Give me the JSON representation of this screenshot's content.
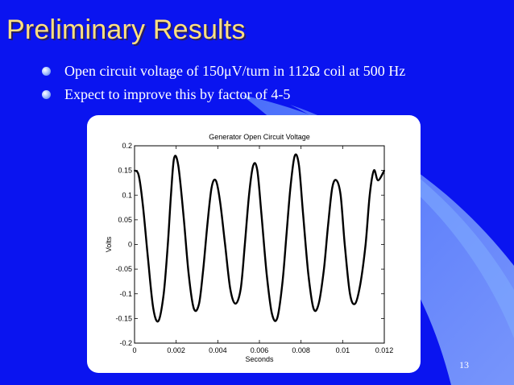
{
  "slide": {
    "title": "Preliminary Results",
    "bullets": [
      "Open circuit voltage of 150μV/turn in 112Ω coil at 500 Hz",
      "Expect to improve this by factor of 4-5"
    ],
    "page_number": "13",
    "colors": {
      "background": "#0a14f0",
      "title": "#ffe080",
      "text": "#ffffff",
      "trace": "#000000"
    }
  },
  "chart_data": {
    "type": "line",
    "title": "Generator Open Circuit Voltage",
    "xlabel": "Seconds",
    "ylabel": "Volts",
    "xlim": [
      0,
      0.012
    ],
    "ylim": [
      -0.2,
      0.2
    ],
    "xticks": [
      "0",
      "0.002",
      "0.004",
      "0.006",
      "0.008",
      "0.01",
      "0.012"
    ],
    "yticks": [
      "0.2",
      "0.15",
      "0.1",
      "0.05",
      "0",
      "-0.05",
      "-0.1",
      "-0.15",
      "-0.2"
    ],
    "grid": false,
    "series": [
      {
        "x": [
          0,
          0.0002,
          0.0004,
          0.00065,
          0.0009,
          0.00115,
          0.0014,
          0.0016,
          0.00175,
          0.0019,
          0.0021,
          0.00235,
          0.0026,
          0.00285,
          0.0031,
          0.0033,
          0.0035,
          0.0037,
          0.0039,
          0.0041,
          0.00435,
          0.0046,
          0.00485,
          0.0051,
          0.0053,
          0.0055,
          0.0057,
          0.0059,
          0.0061,
          0.00635,
          0.0066,
          0.00685,
          0.0071,
          0.0073,
          0.0075,
          0.0077,
          0.0079,
          0.0081,
          0.00835,
          0.0086,
          0.00885,
          0.0091,
          0.0093,
          0.0095,
          0.0097,
          0.0099,
          0.0101,
          0.01035,
          0.0106,
          0.01085,
          0.0111,
          0.0113,
          0.0115,
          0.0117,
          0.012
        ],
        "y": [
          0.15,
          0.14,
          0.08,
          -0.03,
          -0.13,
          -0.155,
          -0.1,
          0.0,
          0.1,
          0.175,
          0.16,
          0.06,
          -0.06,
          -0.13,
          -0.12,
          -0.05,
          0.04,
          0.115,
          0.13,
          0.09,
          0.0,
          -0.09,
          -0.12,
          -0.09,
          0.0,
          0.1,
          0.16,
          0.15,
          0.06,
          -0.06,
          -0.14,
          -0.15,
          -0.08,
          0.02,
          0.12,
          0.18,
          0.16,
          0.06,
          -0.06,
          -0.13,
          -0.12,
          -0.05,
          0.04,
          0.115,
          0.13,
          0.1,
          0.0,
          -0.1,
          -0.12,
          -0.08,
          0.0,
          0.1,
          0.15,
          0.13,
          0.15
        ]
      }
    ]
  }
}
